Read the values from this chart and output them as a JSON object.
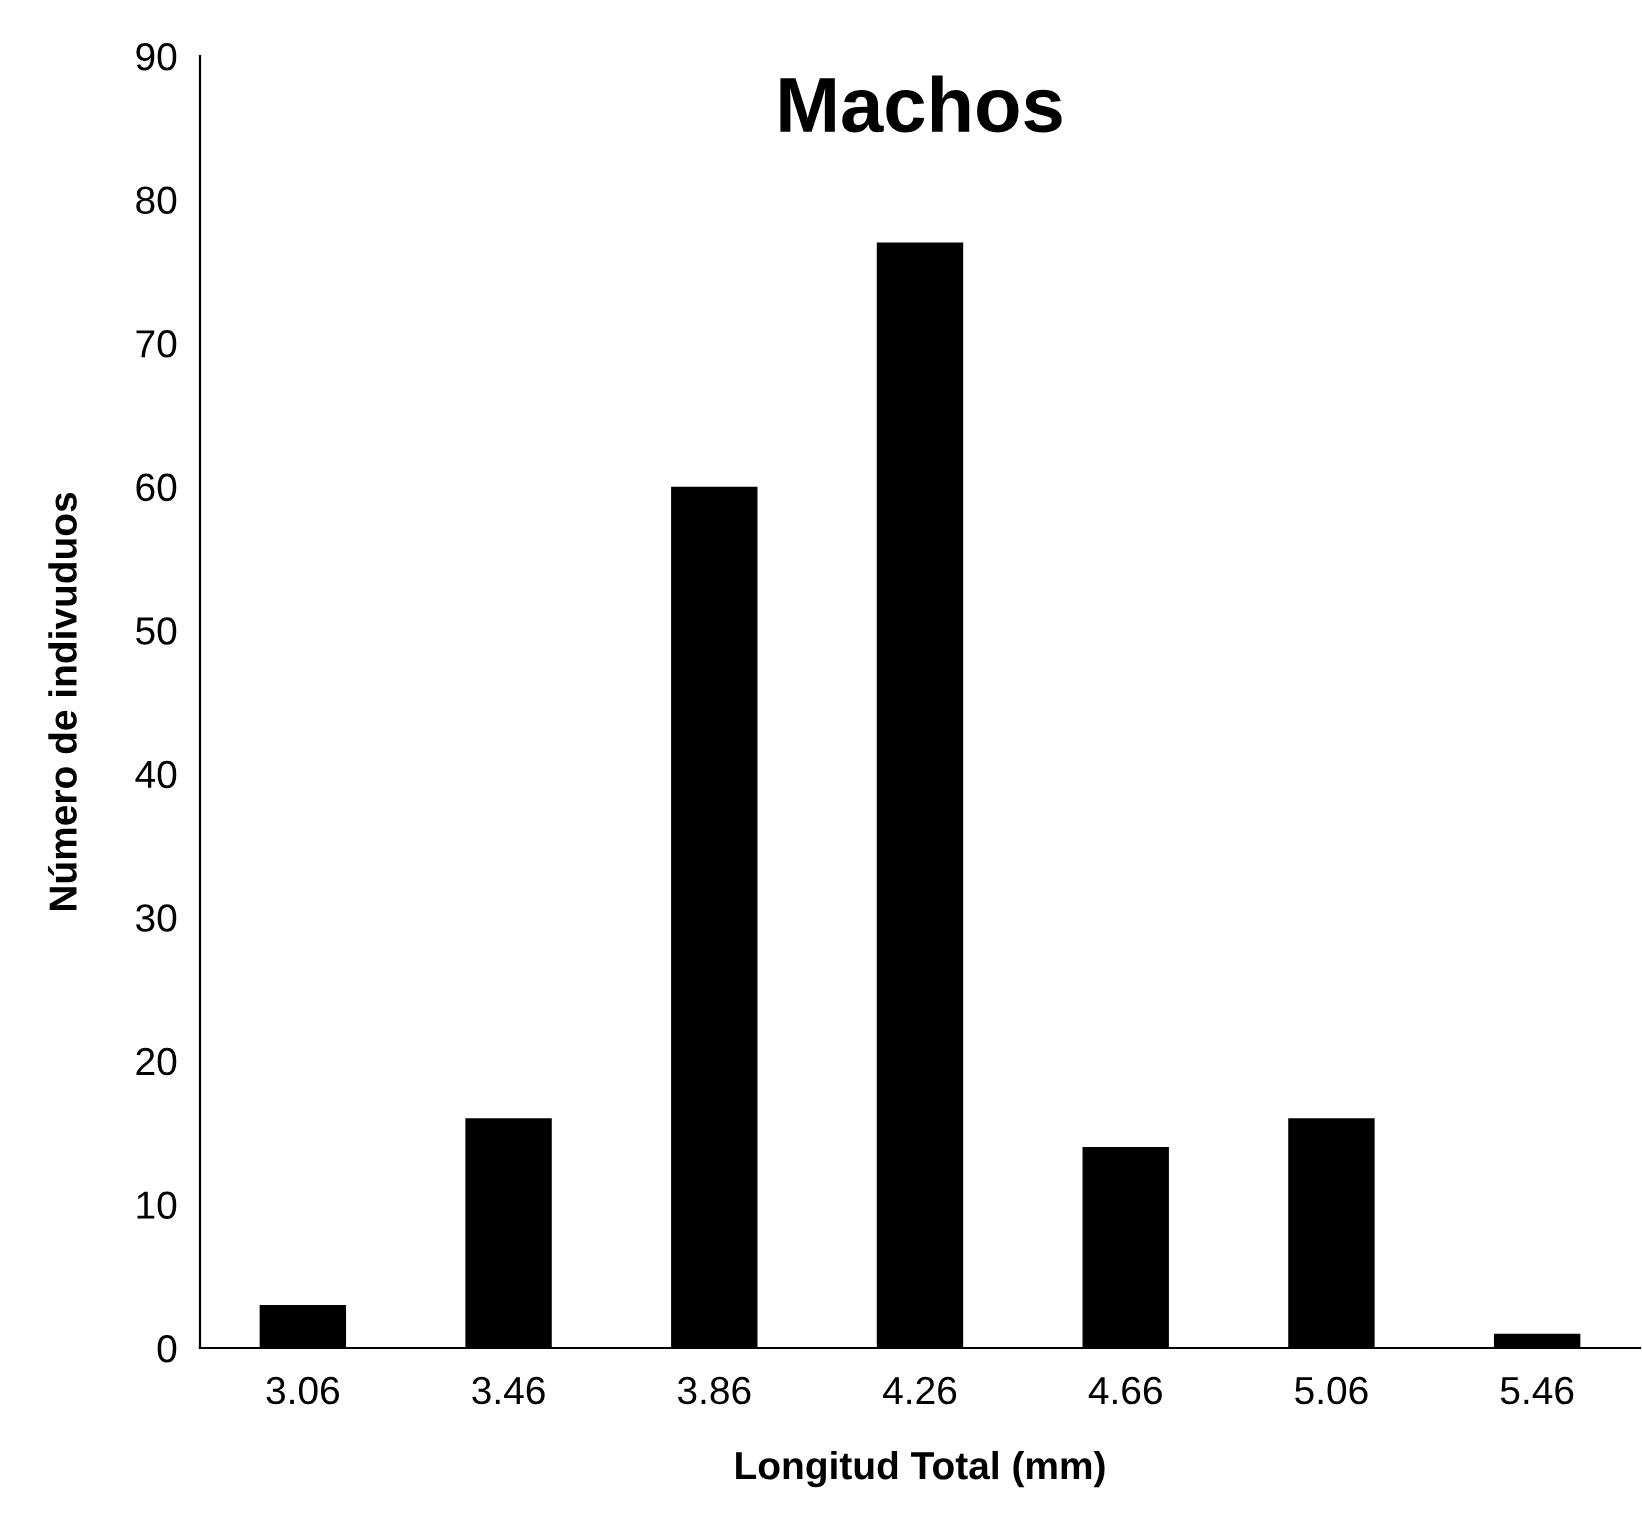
{
  "chart_data": {
    "type": "bar",
    "title": "Machos",
    "xlabel": "Longitud Total (mm)",
    "ylabel": "Número de indivuduos",
    "categories": [
      "3.06",
      "3.46",
      "3.86",
      "4.26",
      "4.66",
      "5.06",
      "5.46"
    ],
    "values": [
      3,
      16,
      60,
      77,
      14,
      16,
      1
    ],
    "color": "#000000",
    "ylim": [
      0,
      90
    ],
    "yticks": [
      0,
      10,
      20,
      30,
      40,
      50,
      60,
      70,
      80,
      90
    ],
    "grid": false,
    "legend": false
  }
}
